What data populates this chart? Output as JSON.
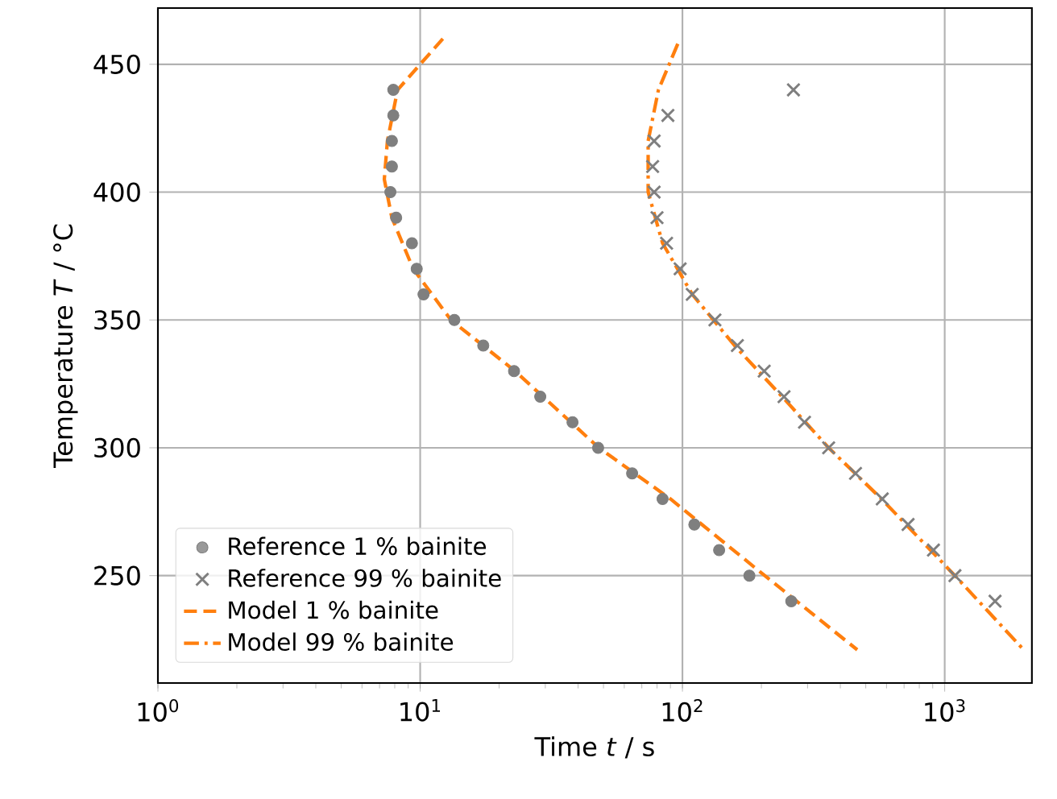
{
  "chart_data": {
    "type": "scatter",
    "xlabel": "Time *t* / s",
    "ylabel": "Temperature *T* / °C",
    "log": "x",
    "grid": true,
    "legend": "bottom left",
    "xlim": [
      1,
      2150
    ],
    "ylim": [
      208,
      472
    ],
    "xticks": [
      {
        "value": 1,
        "label": "10$^{0}$"
      },
      {
        "value": 10,
        "label": "10$^{1}$"
      },
      {
        "value": 100,
        "label": "10$^{2}$"
      },
      {
        "value": 1000,
        "label": "10$^{3}$"
      }
    ],
    "yticks": [
      250,
      300,
      350,
      400,
      450
    ],
    "series": [
      {
        "name": "Reference 1 % bainite",
        "marker": "circle",
        "color": "#7f7f7f",
        "x": [
          7.9,
          7.9,
          7.8,
          7.8,
          7.7,
          8.1,
          9.3,
          9.7,
          10.3,
          13.5,
          17.4,
          22.8,
          28.7,
          38.1,
          47.7,
          64.3,
          84,
          111,
          138,
          180,
          260
        ],
        "values": [
          440,
          430,
          420,
          410,
          400,
          390,
          380,
          370,
          360,
          350,
          340,
          330,
          320,
          310,
          300,
          290,
          280,
          270,
          260,
          250,
          240
        ]
      },
      {
        "name": "Reference 99 % bainite",
        "marker": "cross",
        "color": "#7f7f7f",
        "x": [
          265,
          88,
          78,
          77,
          78,
          80,
          87,
          98,
          109,
          133,
          162,
          205,
          244,
          292,
          361,
          457,
          578,
          725,
          906,
          1094,
          1556
        ],
        "values": [
          440,
          430,
          420,
          410,
          400,
          390,
          380,
          370,
          360,
          350,
          340,
          330,
          320,
          310,
          300,
          290,
          280,
          270,
          260,
          250,
          240
        ]
      },
      {
        "name": "Model 1 % bainite",
        "type": "line",
        "line_style": "dashed",
        "color": "#ff7f0e",
        "x": [
          12.2,
          8.2,
          7.5,
          7.3,
          7.8,
          9.4,
          13.1,
          23,
          48,
          90,
          206,
          464
        ],
        "values": [
          460,
          440,
          420,
          405,
          390,
          370,
          350,
          330,
          300,
          280,
          250,
          221
        ]
      },
      {
        "name": "Model 99 % bainite",
        "type": "line",
        "line_style": "dashdot",
        "color": "#ff7f0e",
        "x": [
          96,
          81,
          74,
          74,
          84,
          109,
          158,
          240,
          361,
          574,
          1094,
          2000
        ],
        "values": [
          458,
          440,
          420,
          400,
          380,
          360,
          340,
          320,
          300,
          280,
          250,
          221
        ]
      }
    ]
  }
}
